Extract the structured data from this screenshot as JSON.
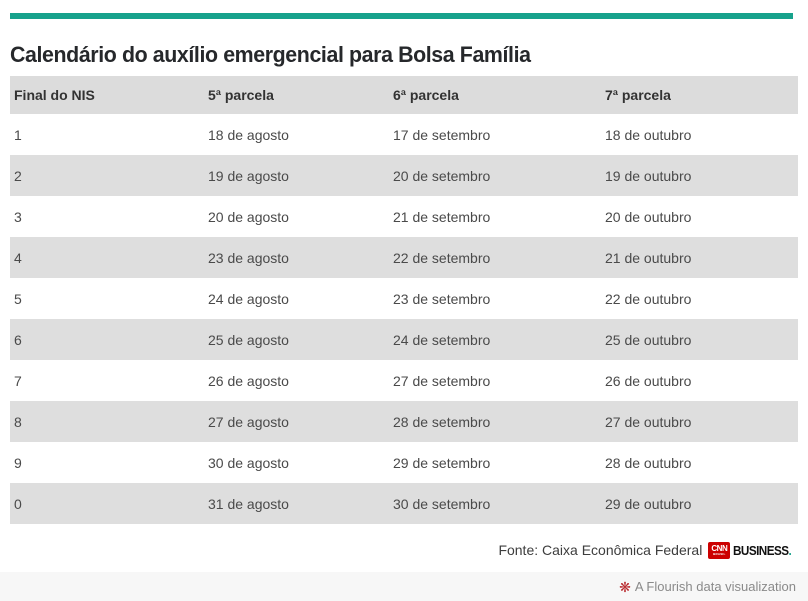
{
  "title": "Calendário do auxílio emergencial para Bolsa Família",
  "chart_data": {
    "type": "table",
    "title": "Calendário do auxílio emergencial para Bolsa Família",
    "columns": [
      "Final do NIS",
      "5ª parcela",
      "6ª parcela",
      "7ª parcela"
    ],
    "rows": [
      [
        "1",
        "18 de agosto",
        "17 de setembro",
        "18 de outubro"
      ],
      [
        "2",
        "19 de agosto",
        "20 de setembro",
        "19 de outubro"
      ],
      [
        "3",
        "20 de agosto",
        "21 de setembro",
        "20 de outubro"
      ],
      [
        "4",
        "23 de agosto",
        "22 de setembro",
        "21 de outubro"
      ],
      [
        "5",
        "24 de agosto",
        "23 de setembro",
        "22 de outubro"
      ],
      [
        "6",
        "25 de agosto",
        "24 de setembro",
        "25 de outubro"
      ],
      [
        "7",
        "26 de agosto",
        "27 de setembro",
        "26 de outubro"
      ],
      [
        "8",
        "27 de agosto",
        "28 de setembro",
        "27 de outubro"
      ],
      [
        "9",
        "30 de agosto",
        "29 de setembro",
        "28 de outubro"
      ],
      [
        "0",
        "31 de agosto",
        "30 de setembro",
        "29 de outubro"
      ]
    ],
    "layout": {
      "header_background": "#dcdcdc",
      "alternating_row_background": "#dedede",
      "striped_rows": true
    }
  },
  "source": {
    "text": "Fonte: Caixa Econômica Federal",
    "cnn_logo_text": "CNN",
    "cnn_logo_subtext": "BRASIL",
    "business_wordmark": "BUSINESS",
    "business_period": "."
  },
  "footer": {
    "attribution": "A Flourish data visualization",
    "icon": "flourish-flower-icon",
    "icon_glyph": "❋"
  },
  "colors": {
    "accent_teal": "#17a28c",
    "header_bg": "#dcdcdc",
    "row_alt_bg": "#dedede",
    "title_text": "#26282b",
    "cell_text": "#4a4a4a",
    "cnn_red": "#cc0000",
    "flourish_red": "#b8272b",
    "attribution_text": "#8a8a8a",
    "strip_bg": "#f7f7f7"
  }
}
